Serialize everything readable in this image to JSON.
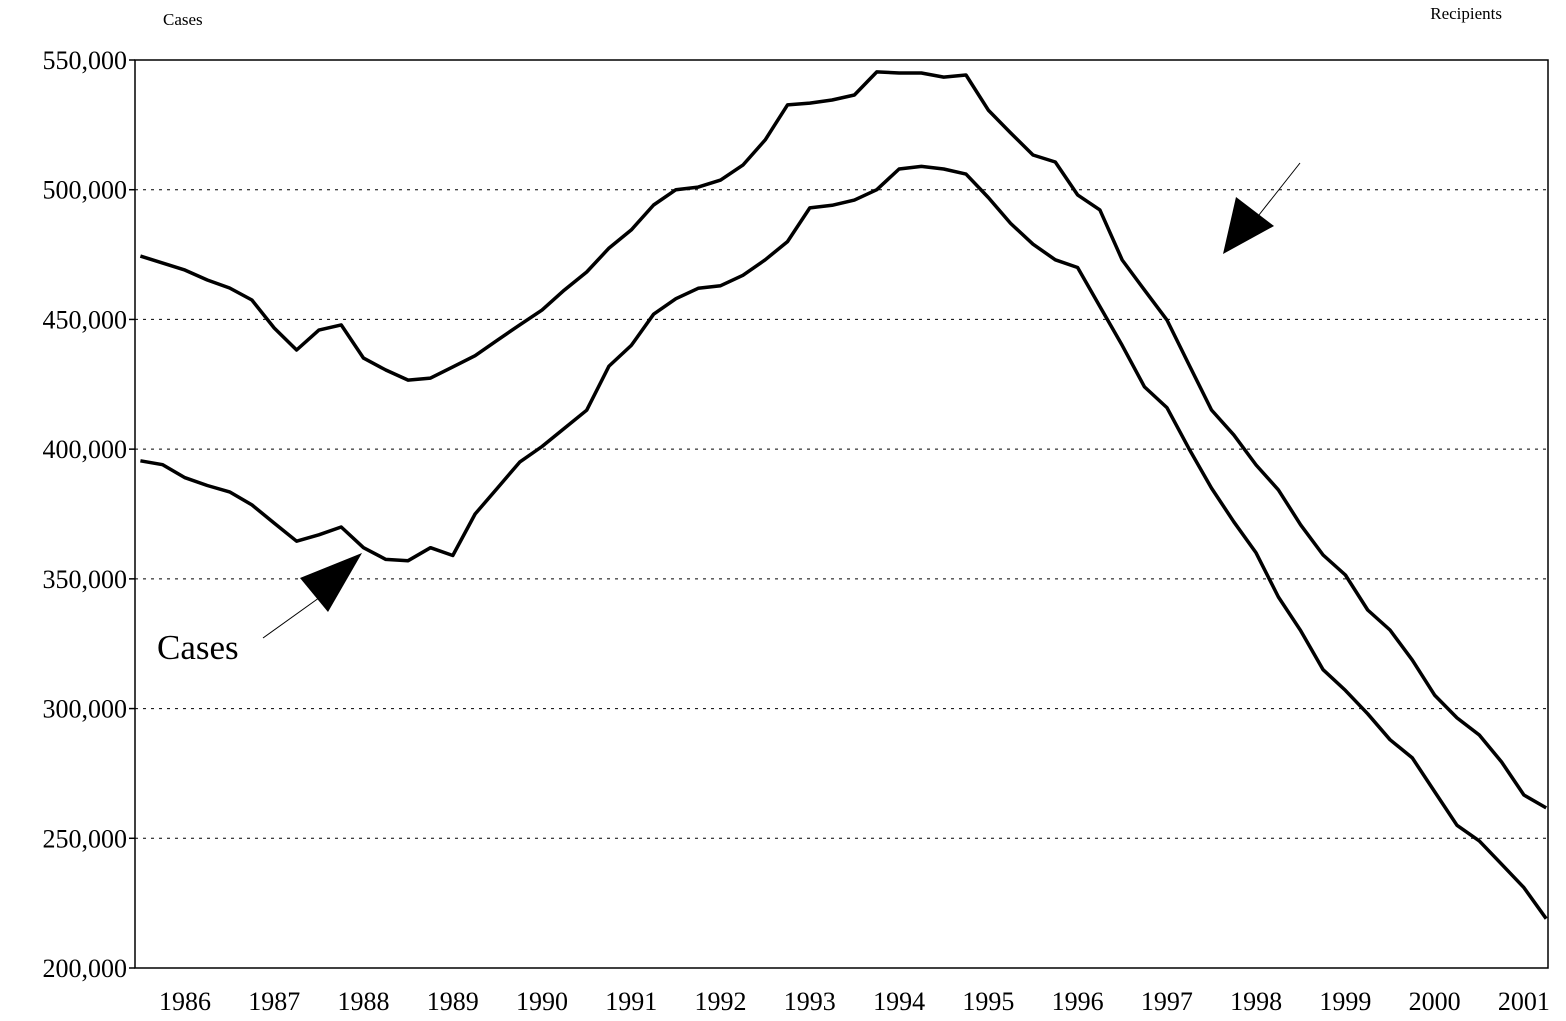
{
  "chart_data": {
    "type": "line",
    "ylabel": "Cases",
    "y2label": "Recipients",
    "annotation": "Cases",
    "x": [
      1986.0,
      1986.25,
      1986.5,
      1986.75,
      1987.0,
      1987.25,
      1987.5,
      1987.75,
      1988.0,
      1988.25,
      1988.5,
      1988.75,
      1989.0,
      1989.25,
      1989.5,
      1989.75,
      1990.0,
      1990.25,
      1990.5,
      1990.75,
      1991.0,
      1991.25,
      1991.5,
      1991.75,
      1992.0,
      1992.25,
      1992.5,
      1992.75,
      1993.0,
      1993.25,
      1993.5,
      1993.75,
      1994.0,
      1994.25,
      1994.5,
      1994.75,
      1995.0,
      1995.25,
      1995.5,
      1995.75,
      1996.0,
      1996.25,
      1996.5,
      1996.75,
      1997.0,
      1997.25,
      1997.5,
      1997.75,
      1998.0,
      1998.25,
      1998.5,
      1998.75,
      1999.0,
      1999.25,
      1999.5,
      1999.75,
      2000.0,
      2000.25,
      2000.5,
      2000.75,
      2001.0,
      2001.25,
      2001.5,
      2001.75
    ],
    "series": [
      {
        "color": "#000000",
        "values": [
          474400,
          471700,
          469000,
          465200,
          462100,
          457500,
          446700,
          438200,
          445900,
          447900,
          435100,
          430500,
          426600,
          427400,
          431700,
          436000,
          442000,
          447900,
          453600,
          461300,
          468300,
          477500,
          484500,
          494100,
          500000,
          501000,
          503700,
          509500,
          519200,
          532700,
          533400,
          534600,
          536500,
          545400,
          545000,
          545000,
          543400,
          544200,
          530700,
          521900,
          513400,
          510700,
          498000,
          492200,
          472900,
          461300,
          449800,
          432400,
          415100,
          405500,
          393900,
          384300,
          370800,
          359200,
          351500,
          338000,
          330300,
          318700,
          305200,
          296400,
          289800,
          279400,
          266700,
          261700
        ]
      },
      {
        "color": "#000000",
        "values": [
          395500,
          394000,
          389000,
          386000,
          383500,
          378500,
          371500,
          364500,
          367000,
          370000,
          362000,
          357500,
          357000,
          362000,
          359000,
          375000,
          385000,
          395000,
          401000,
          408000,
          415000,
          432000,
          440000,
          452000,
          458000,
          462000,
          463000,
          467000,
          473000,
          480000,
          493000,
          494000,
          496000,
          500000,
          508000,
          509000,
          508000,
          506000,
          497000,
          487000,
          479000,
          473000,
          470000,
          455000,
          440000,
          424000,
          416000,
          400000,
          385000,
          372000,
          360000,
          343000,
          330000,
          315000,
          307000,
          298000,
          288000,
          281000,
          268000,
          255000,
          249000,
          240000,
          231000,
          219000
        ]
      }
    ],
    "xlim": [
      1985.94,
      2001.77
    ],
    "xticks": [
      {
        "value": 1986.5,
        "label": "1986"
      },
      {
        "value": 1987.5,
        "label": "1987"
      },
      {
        "value": 1988.5,
        "label": "1988"
      },
      {
        "value": 1989.5,
        "label": "1989"
      },
      {
        "value": 1990.5,
        "label": "1990"
      },
      {
        "value": 1991.5,
        "label": "1991"
      },
      {
        "value": 1992.5,
        "label": "1992"
      },
      {
        "value": 1993.5,
        "label": "1993"
      },
      {
        "value": 1994.5,
        "label": "1994"
      },
      {
        "value": 1995.5,
        "label": "1995"
      },
      {
        "value": 1996.5,
        "label": "1996"
      },
      {
        "value": 1997.5,
        "label": "1997"
      },
      {
        "value": 1998.5,
        "label": "1998"
      },
      {
        "value": 1999.5,
        "label": "1999"
      },
      {
        "value": 2000.5,
        "label": "2000"
      },
      {
        "value": 2001.5,
        "label": "2001"
      }
    ],
    "ylim": [
      200000,
      550000
    ],
    "yticks": [
      {
        "value": 200000,
        "label": "200,000"
      },
      {
        "value": 250000,
        "label": "250,000"
      },
      {
        "value": 300000,
        "label": "300,000"
      },
      {
        "value": 350000,
        "label": "350,000"
      },
      {
        "value": 400000,
        "label": "400,000"
      },
      {
        "value": 450000,
        "label": "450,000"
      },
      {
        "value": 500000,
        "label": "500,000"
      },
      {
        "value": 550000,
        "label": "550,000"
      }
    ],
    "grid": true
  }
}
